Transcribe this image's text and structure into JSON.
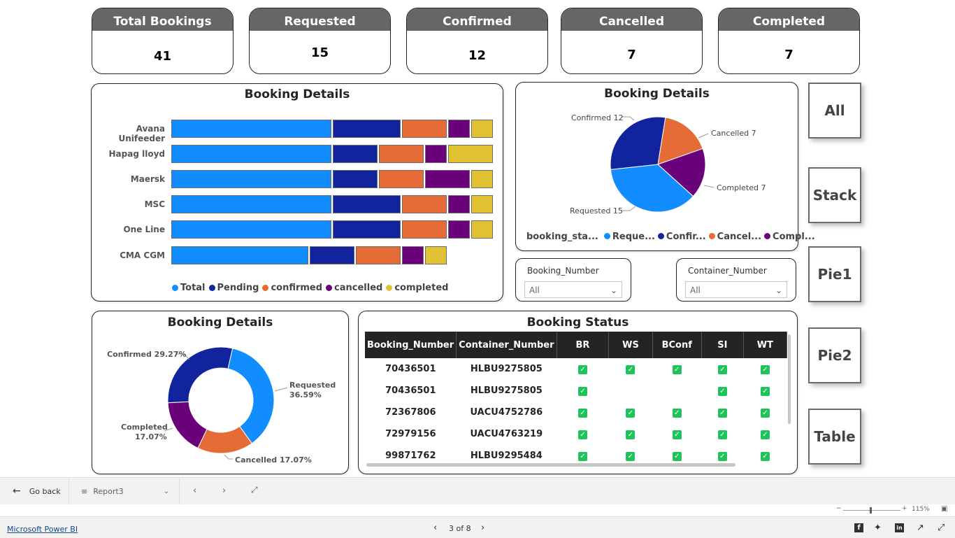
{
  "kpis": [
    {
      "label": "Total Bookings",
      "value": "41"
    },
    {
      "label": "Requested",
      "value": "15"
    },
    {
      "label": "Confirmed",
      "value": "12"
    },
    {
      "label": "Cancelled",
      "value": "7"
    },
    {
      "label": "Completed",
      "value": "7"
    }
  ],
  "colors": {
    "total": "#118dff",
    "pending": "#12239e",
    "confirmed": "#e66c37",
    "cancelled": "#6b007b",
    "completed": "#e1c233",
    "kpi_header": "#666666"
  },
  "bar_card": {
    "title": "Booking Details"
  },
  "pie_card": {
    "title": "Booking Details"
  },
  "donut_card": {
    "title": "Booking Details"
  },
  "table_card": {
    "title": "Booking Status"
  },
  "side_buttons": [
    "All",
    "Stack",
    "Pie1",
    "Pie2",
    "Table"
  ],
  "chart_data": [
    {
      "type": "bar",
      "title": "Booking Details",
      "stacked": true,
      "orientation": "horizontal",
      "categories": [
        "Avana Unifeeder",
        "Hapag lloyd",
        "Maersk",
        "MSC",
        "One Line",
        "CMA CGM"
      ],
      "series": [
        {
          "name": "Total",
          "values": [
            7,
            7,
            7,
            7,
            7,
            6
          ]
        },
        {
          "name": "Pending",
          "values": [
            3,
            2,
            2,
            3,
            3,
            2
          ]
        },
        {
          "name": "confirmed",
          "values": [
            2,
            2,
            2,
            2,
            2,
            2
          ]
        },
        {
          "name": "cancelled",
          "values": [
            1,
            1,
            2,
            1,
            1,
            1
          ]
        },
        {
          "name": "completed",
          "values": [
            1,
            2,
            1,
            1,
            1,
            1
          ]
        }
      ],
      "legend": "bottom"
    },
    {
      "type": "pie",
      "title": "Booking Details",
      "legend_title": "booking_sta...",
      "legend_entries": [
        "Reque...",
        "Confir...",
        "Cancel...",
        "Compl..."
      ],
      "slices": [
        {
          "name": "Requested",
          "label": "Requested 15",
          "value": 15
        },
        {
          "name": "Confirmed",
          "label": "Confirmed 12",
          "value": 12
        },
        {
          "name": "Cancelled",
          "label": "Cancelled 7",
          "value": 7
        },
        {
          "name": "Completed",
          "label": "Completed 7",
          "value": 7
        }
      ]
    },
    {
      "type": "pie",
      "donut": true,
      "title": "Booking Details",
      "slices": [
        {
          "name": "Requested",
          "label": "Requested",
          "pct": "36.59%",
          "value": 36.59
        },
        {
          "name": "Confirmed",
          "label": "Confirmed 29.27%",
          "pct": "",
          "value": 29.27
        },
        {
          "name": "Cancelled",
          "label": "Cancelled 17.07%",
          "pct": "",
          "value": 17.07
        },
        {
          "name": "Completed",
          "label": "Completed",
          "pct": "17.07%",
          "value": 17.07
        }
      ]
    }
  ],
  "slicers": [
    {
      "title": "Booking_Number",
      "value": "All"
    },
    {
      "title": "Container_Number",
      "value": "All"
    }
  ],
  "table": {
    "headers": [
      "Booking_Number",
      "Container_Number",
      "BR",
      "WS",
      "BConf",
      "SI",
      "WT"
    ],
    "rows": [
      {
        "booking": "70436501",
        "container": "HLBU9275805",
        "checks": [
          true,
          true,
          true,
          true,
          true
        ]
      },
      {
        "booking": "70436501",
        "container": "HLBU9275805",
        "checks": [
          true,
          false,
          false,
          true,
          true
        ]
      },
      {
        "booking": "72367806",
        "container": "UACU4752786",
        "checks": [
          true,
          true,
          true,
          true,
          true
        ]
      },
      {
        "booking": "72979156",
        "container": "UACU4763219",
        "checks": [
          true,
          true,
          true,
          true,
          true
        ]
      },
      {
        "booking": "99871762",
        "container": "HLBU9295484",
        "checks": [
          true,
          true,
          true,
          true,
          true
        ]
      }
    ]
  },
  "footer": {
    "go_back": "Go back",
    "report": "Report3",
    "zoom": "115%",
    "brand": "Microsoft Power BI",
    "page": "3 of 8"
  }
}
